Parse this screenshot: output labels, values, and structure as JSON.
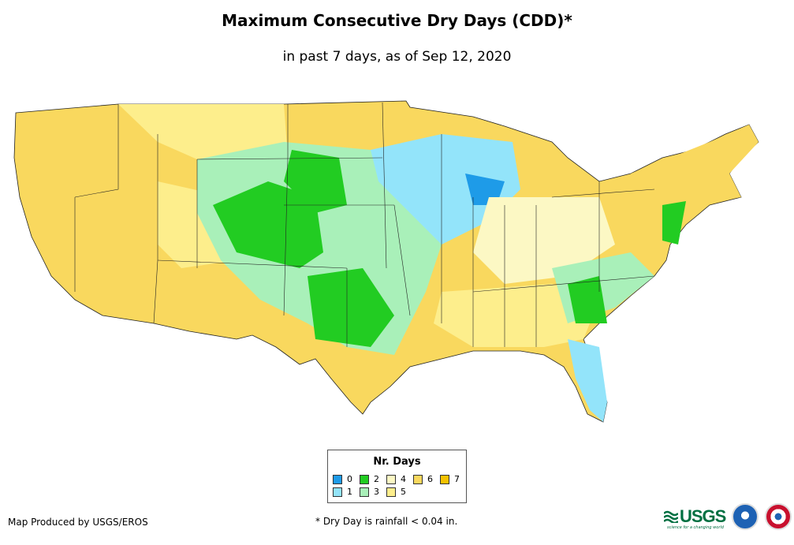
{
  "header": {
    "title": "Maximum Consecutive Dry Days (CDD)*",
    "subtitle": "in past 7 days, as of Sep 12, 2020"
  },
  "legend": {
    "title": "Nr. Days",
    "items": [
      {
        "label": "0",
        "color": "#1e9be8"
      },
      {
        "label": "1",
        "color": "#93e4fa"
      },
      {
        "label": "2",
        "color": "#22cc22"
      },
      {
        "label": "3",
        "color": "#a9f0b9"
      },
      {
        "label": "4",
        "color": "#fcf8c4"
      },
      {
        "label": "5",
        "color": "#fdee8c"
      },
      {
        "label": "6",
        "color": "#f9d85e"
      },
      {
        "label": "7",
        "color": "#f5c200"
      }
    ]
  },
  "footer": {
    "credit": "Map Produced by USGS/EROS",
    "note": "* Dry Day is rainfall < 0.04 in.",
    "usgs_logo": "USGS",
    "usgs_tagline": "science for a changing world"
  }
}
